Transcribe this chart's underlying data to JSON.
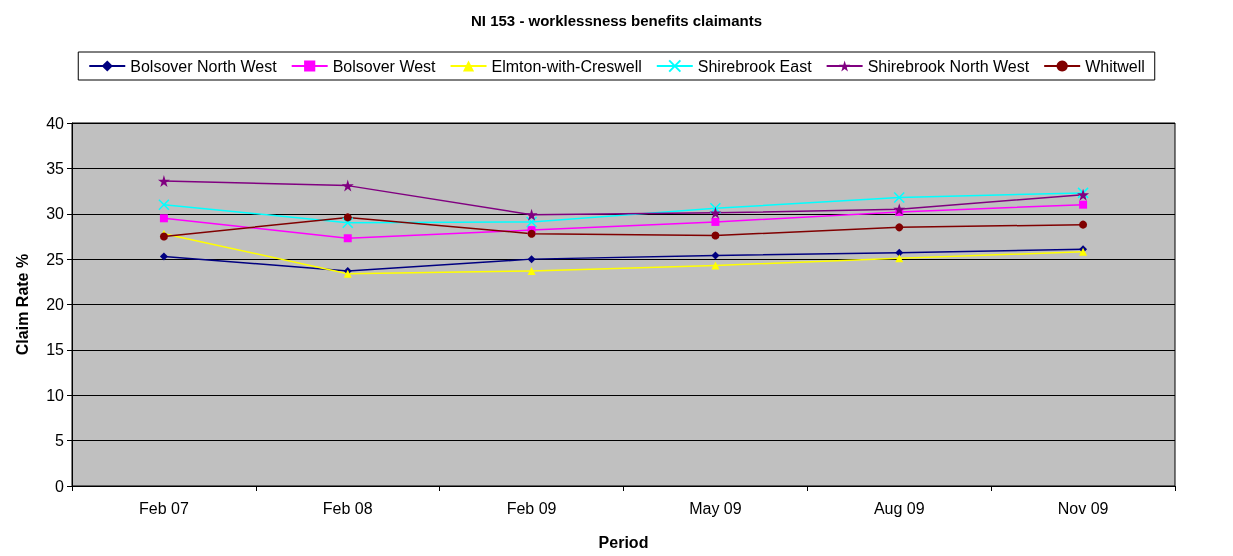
{
  "chart_data": {
    "type": "line",
    "title": "NI 153 - worklessness benefits claimants",
    "xlabel": "Period",
    "ylabel": "Claim Rate %",
    "categories": [
      "Feb 07",
      "Feb 08",
      "Feb 09",
      "May 09",
      "Aug 09",
      "Nov 09"
    ],
    "series": [
      {
        "name": "Bolsover North West",
        "color": "#000080",
        "marker": "diamond",
        "values": [
          25.3,
          23.7,
          25.0,
          25.4,
          25.7,
          26.1
        ]
      },
      {
        "name": "Bolsover West",
        "color": "#ff00ff",
        "marker": "square",
        "values": [
          29.5,
          27.3,
          28.2,
          29.1,
          30.2,
          31.0
        ]
      },
      {
        "name": "Elmton-with-Creswell",
        "color": "#ffff00",
        "marker": "triangle",
        "values": [
          27.8,
          23.4,
          23.7,
          24.3,
          25.1,
          25.8
        ]
      },
      {
        "name": "Shirebrook East",
        "color": "#00ffff",
        "marker": "cross",
        "values": [
          31.0,
          29.0,
          29.1,
          30.6,
          31.8,
          32.3
        ]
      },
      {
        "name": "Shirebrook North West",
        "color": "#800080",
        "marker": "star",
        "values": [
          33.6,
          33.1,
          29.9,
          30.1,
          30.5,
          32.1
        ]
      },
      {
        "name": "Whitwell",
        "color": "#800000",
        "marker": "circle",
        "values": [
          27.5,
          29.6,
          27.8,
          27.6,
          28.5,
          28.8
        ]
      }
    ],
    "ylim": [
      0,
      40
    ],
    "yticks": [
      0,
      5,
      10,
      15,
      20,
      25,
      30,
      35,
      40
    ],
    "grid": "y",
    "legend": "top",
    "line_style": "solid"
  }
}
